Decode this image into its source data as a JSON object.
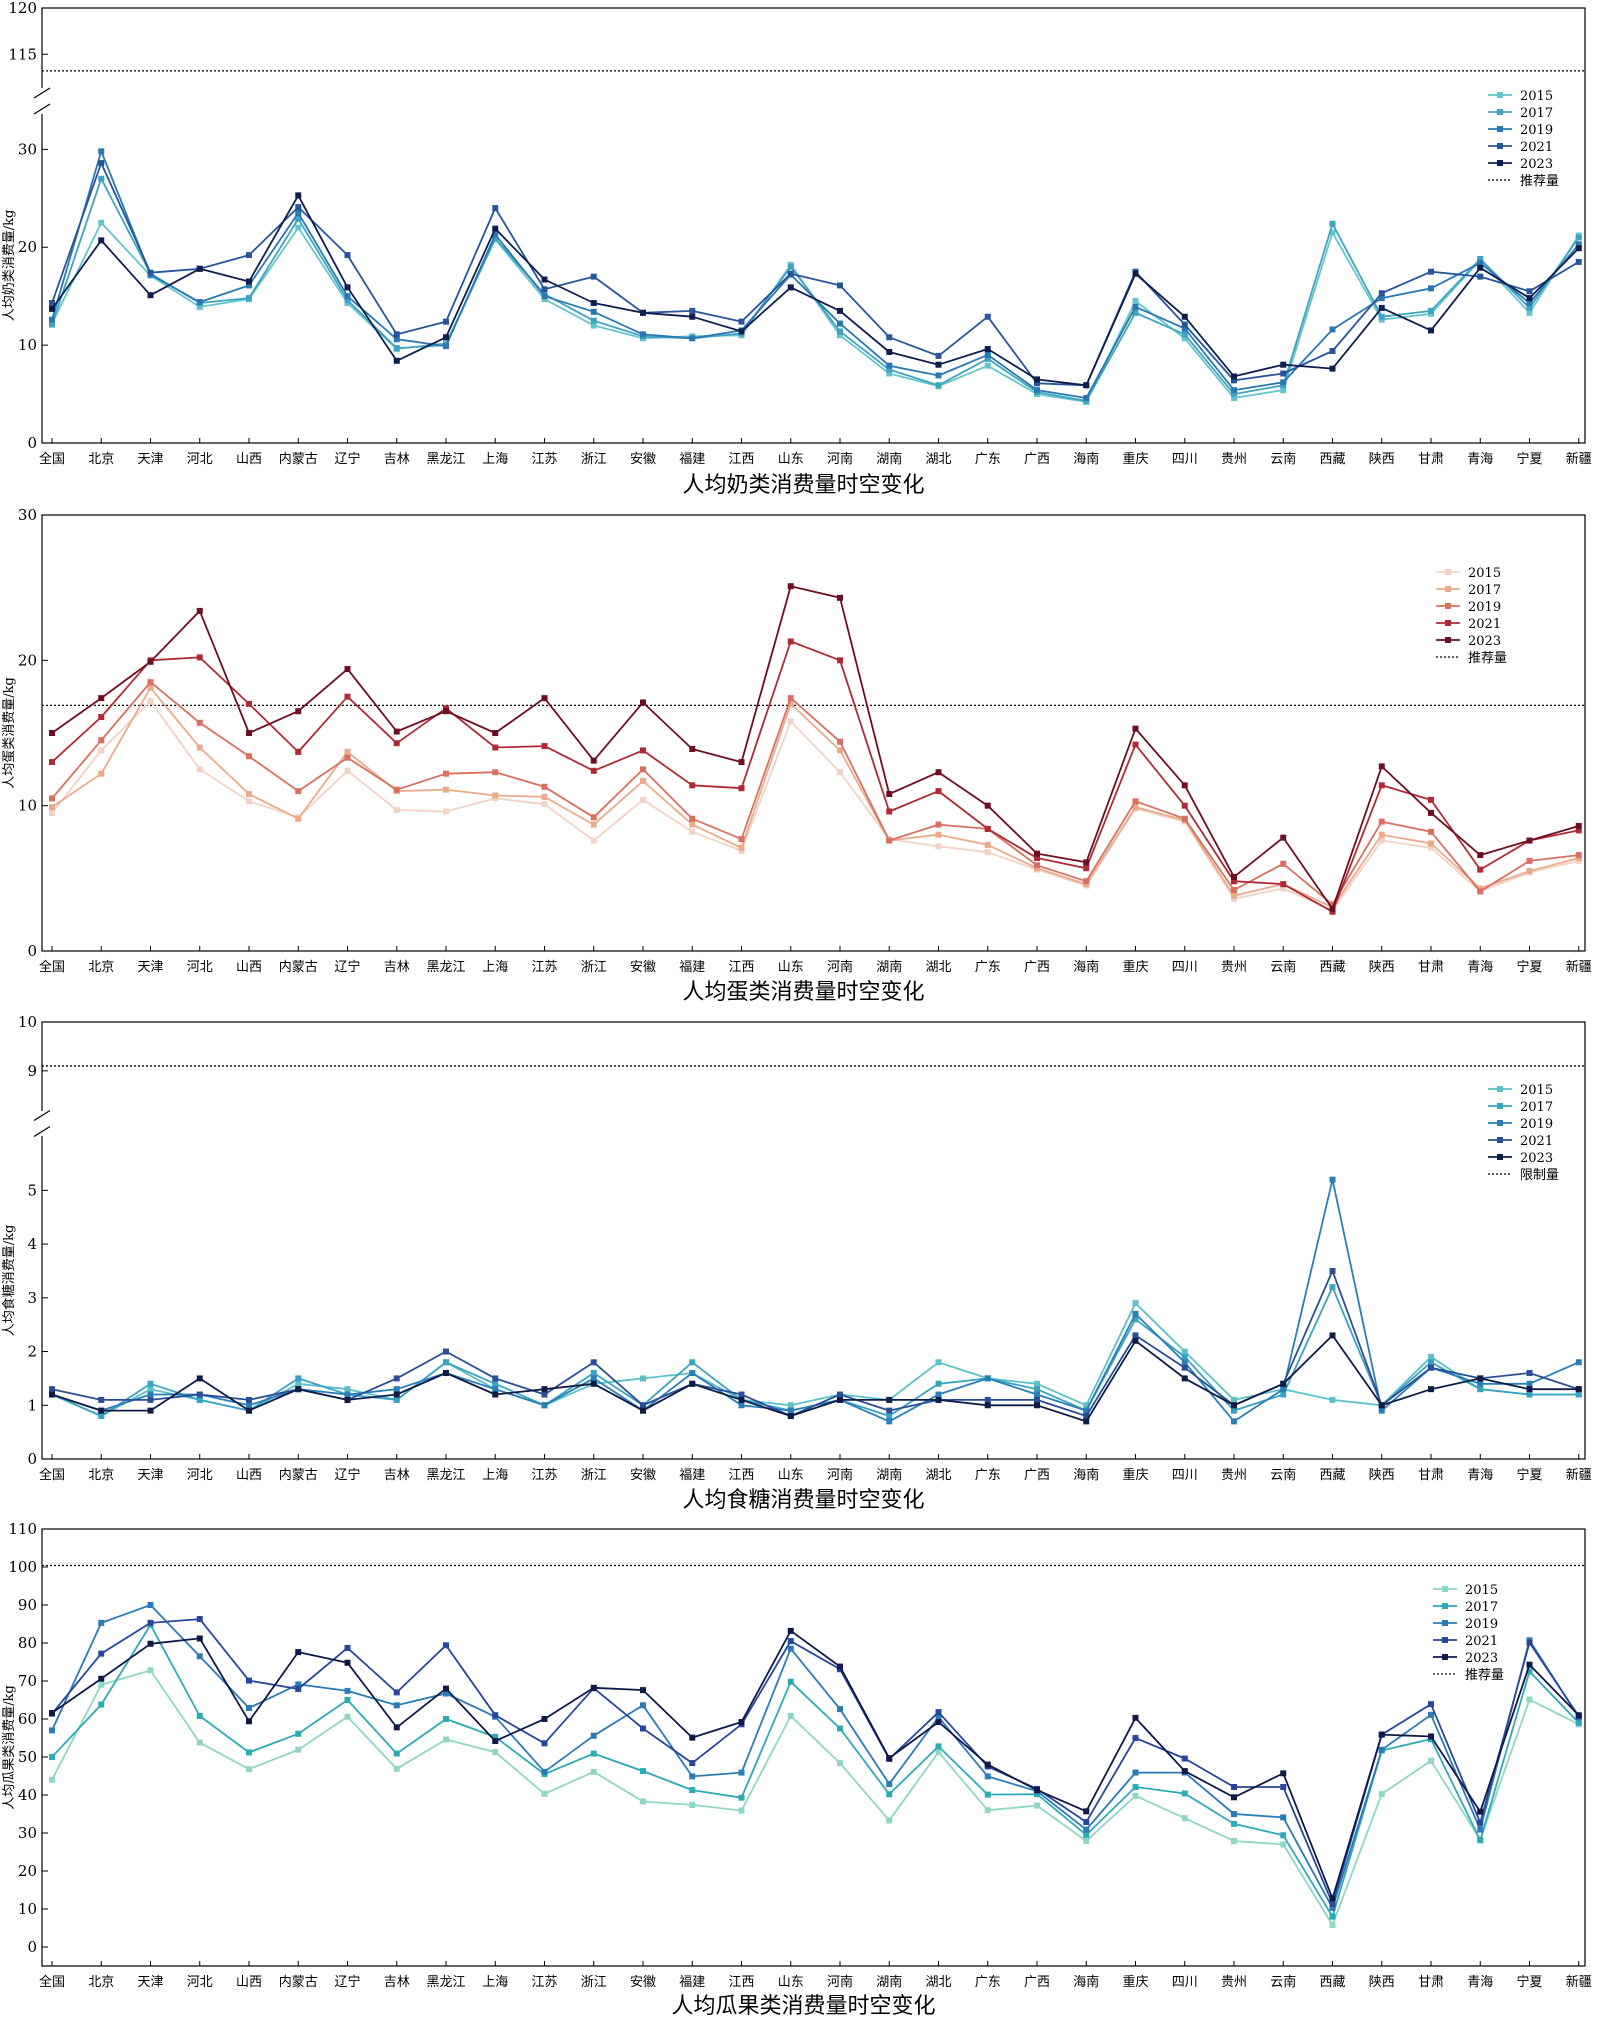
{
  "categories": [
    "全国",
    "北京",
    "天津",
    "河北",
    "山西",
    "内蒙古",
    "辽宁",
    "吉林",
    "黑龙江",
    "上海",
    "江苏",
    "浙江",
    "安徽",
    "福建",
    "江西",
    "山东",
    "河南",
    "湖南",
    "湖北",
    "广东",
    "广西",
    "海南",
    "重庆",
    "四川",
    "贵州",
    "云南",
    "西藏",
    "陕西",
    "甘肃",
    "青海",
    "宁夏",
    "新疆"
  ],
  "chart_data": [
    {
      "type": "line",
      "title": "人均奶类消费量时空变化",
      "ylabel": "人均奶类消费量/kg",
      "xlabel": "",
      "ylim": [
        0,
        120
      ],
      "axis_break": [
        33,
        112
      ],
      "yticks_lower": [
        0,
        10,
        20,
        30
      ],
      "yticks_upper": [
        115,
        120
      ],
      "reference": {
        "name": "推荐量",
        "value": 113.2
      },
      "colors": [
        "#66c5cc",
        "#3ea4c2",
        "#2a78b2",
        "#28569a",
        "#0f1e4e"
      ],
      "series": [
        {
          "name": "2015",
          "values": [
            12.2,
            22.5,
            17.1,
            13.9,
            14.7,
            22.0,
            14.3,
            9.6,
            10.2,
            20.8,
            14.7,
            12.0,
            10.7,
            10.9,
            11.0,
            18.2,
            11.0,
            7.1,
            5.8,
            7.9,
            5.0,
            4.2,
            14.5,
            10.7,
            4.6,
            5.4,
            21.5,
            12.6,
            13.2,
            18.7,
            13.3,
            21.2
          ]
        },
        {
          "name": "2017",
          "values": [
            12.1,
            27.0,
            17.3,
            14.3,
            14.8,
            22.9,
            14.6,
            9.7,
            10.0,
            20.9,
            15.2,
            12.5,
            10.9,
            10.7,
            11.2,
            18.0,
            11.4,
            7.5,
            5.9,
            8.6,
            5.2,
            4.3,
            13.3,
            11.1,
            5.0,
            5.9,
            22.4,
            12.9,
            13.5,
            18.8,
            13.8,
            21.0
          ]
        },
        {
          "name": "2019",
          "values": [
            12.6,
            29.8,
            17.2,
            14.4,
            16.1,
            23.5,
            15.0,
            10.6,
            9.9,
            21.3,
            15.0,
            13.4,
            11.1,
            10.7,
            11.5,
            17.2,
            12.2,
            7.9,
            6.9,
            9.0,
            5.4,
            4.6,
            13.9,
            11.7,
            5.4,
            6.2,
            11.6,
            14.8,
            15.8,
            18.4,
            14.3,
            20.3
          ]
        },
        {
          "name": "2021",
          "values": [
            14.3,
            28.6,
            17.4,
            17.8,
            19.2,
            24.1,
            19.2,
            11.1,
            12.4,
            24.0,
            15.7,
            17.0,
            13.3,
            13.5,
            12.4,
            17.3,
            16.1,
            10.8,
            8.9,
            12.9,
            6.1,
            5.9,
            17.5,
            12.1,
            6.4,
            7.1,
            9.4,
            15.3,
            17.5,
            17.0,
            15.5,
            18.5
          ]
        },
        {
          "name": "2023",
          "values": [
            13.7,
            20.7,
            15.1,
            17.8,
            16.5,
            25.3,
            15.9,
            8.4,
            10.8,
            21.9,
            16.7,
            14.3,
            13.3,
            12.9,
            11.4,
            15.9,
            13.5,
            9.3,
            8.0,
            9.6,
            6.5,
            5.9,
            17.3,
            12.9,
            6.8,
            8.0,
            7.6,
            13.8,
            11.5,
            17.9,
            14.8,
            19.9
          ]
        }
      ]
    },
    {
      "type": "line",
      "title": "人均蛋类消费量时空变化",
      "ylabel": "人均蛋类消费量/kg",
      "xlabel": "",
      "ylim": [
        0,
        30
      ],
      "yticks": [
        0,
        10,
        20,
        30
      ],
      "reference": {
        "name": "推荐量",
        "value": 16.9
      },
      "colors": [
        "#f2d2c4",
        "#ebab8a",
        "#d87060",
        "#b02a36",
        "#6e0e22"
      ],
      "series": [
        {
          "name": "2015",
          "values": [
            9.5,
            13.8,
            17.2,
            12.5,
            10.3,
            9.2,
            12.4,
            9.7,
            9.6,
            10.5,
            10.1,
            7.6,
            10.4,
            8.2,
            6.9,
            15.8,
            12.3,
            7.7,
            7.2,
            6.8,
            5.6,
            4.5,
            9.8,
            8.9,
            3.6,
            4.3,
            2.8,
            7.6,
            7.1,
            4.1,
            5.4,
            6.2
          ]
        },
        {
          "name": "2017",
          "values": [
            9.9,
            12.2,
            18.1,
            14.0,
            10.8,
            9.1,
            13.7,
            11.0,
            11.1,
            10.7,
            10.6,
            8.7,
            11.7,
            8.7,
            7.1,
            17.0,
            13.8,
            7.6,
            8.0,
            7.3,
            5.7,
            4.6,
            9.9,
            9.0,
            3.8,
            4.6,
            3.0,
            8.0,
            7.4,
            4.3,
            5.5,
            6.4
          ]
        },
        {
          "name": "2019",
          "values": [
            10.5,
            14.5,
            18.5,
            15.7,
            13.4,
            11.0,
            13.3,
            11.1,
            12.2,
            12.3,
            11.3,
            9.2,
            12.5,
            9.1,
            7.7,
            17.4,
            14.4,
            7.6,
            8.7,
            8.4,
            5.9,
            4.8,
            10.3,
            9.1,
            4.2,
            6.0,
            3.2,
            8.9,
            8.2,
            4.1,
            6.2,
            6.6
          ]
        },
        {
          "name": "2021",
          "values": [
            13.0,
            16.1,
            20.0,
            20.2,
            17.0,
            13.7,
            17.5,
            14.3,
            16.7,
            14.0,
            14.1,
            12.4,
            13.8,
            11.4,
            11.2,
            21.3,
            20.0,
            9.6,
            11.0,
            8.4,
            6.4,
            5.7,
            14.2,
            10.0,
            4.8,
            4.6,
            2.7,
            11.4,
            10.4,
            5.6,
            7.6,
            8.3
          ]
        },
        {
          "name": "2023",
          "values": [
            15.0,
            17.4,
            19.9,
            23.4,
            15.0,
            16.5,
            19.4,
            15.1,
            16.5,
            15.0,
            17.4,
            13.1,
            17.1,
            13.9,
            13.0,
            25.1,
            24.3,
            10.8,
            12.3,
            10.0,
            6.7,
            6.1,
            15.3,
            11.4,
            5.1,
            7.8,
            2.9,
            12.7,
            9.5,
            6.6,
            7.6,
            8.6
          ]
        }
      ]
    },
    {
      "type": "line",
      "title": "人均食糖消费量时空变化",
      "ylabel": "人均食糖消费量/kg",
      "xlabel": "",
      "ylim": [
        0,
        10
      ],
      "axis_break": [
        5.9,
        8.3
      ],
      "yticks_lower": [
        0,
        1,
        2,
        3,
        4,
        5
      ],
      "yticks_upper": [
        9,
        10
      ],
      "reference": {
        "name": "限制量",
        "value": 9.1
      },
      "colors": [
        "#5cc0c9",
        "#3aa3c2",
        "#2b7eb6",
        "#2a4f96",
        "#101c48"
      ],
      "series": [
        {
          "name": "2015",
          "values": [
            1.2,
            0.8,
            1.3,
            1.1,
            0.9,
            1.4,
            1.3,
            1.1,
            1.8,
            1.3,
            1.0,
            1.4,
            1.5,
            1.6,
            1.1,
            1.0,
            1.2,
            1.1,
            1.8,
            1.5,
            1.4,
            1.0,
            2.9,
            2.0,
            1.1,
            1.3,
            1.1,
            1.0,
            1.9,
            1.3,
            1.2,
            1.2
          ]
        },
        {
          "name": "2017",
          "values": [
            1.2,
            0.8,
            1.4,
            1.1,
            0.9,
            1.5,
            1.2,
            1.1,
            1.8,
            1.4,
            1.0,
            1.6,
            1.0,
            1.8,
            1.1,
            0.9,
            1.1,
            0.8,
            1.4,
            1.5,
            1.3,
            0.9,
            2.6,
            1.9,
            0.9,
            1.2,
            3.2,
            1.0,
            1.8,
            1.3,
            1.2,
            1.2
          ]
        },
        {
          "name": "2019",
          "values": [
            1.2,
            0.9,
            1.2,
            1.2,
            1.0,
            1.3,
            1.2,
            1.3,
            1.6,
            1.3,
            1.0,
            1.5,
            0.9,
            1.6,
            1.0,
            0.9,
            1.1,
            0.7,
            1.2,
            1.5,
            1.2,
            0.9,
            2.7,
            1.8,
            0.7,
            1.3,
            5.2,
            0.9,
            1.7,
            1.4,
            1.4,
            1.8
          ]
        },
        {
          "name": "2021",
          "values": [
            1.3,
            1.1,
            1.1,
            1.2,
            1.1,
            1.3,
            1.1,
            1.5,
            2.0,
            1.5,
            1.2,
            1.8,
            1.0,
            1.4,
            1.2,
            0.8,
            1.2,
            0.9,
            1.1,
            1.1,
            1.1,
            0.8,
            2.3,
            1.7,
            1.0,
            1.4,
            3.5,
            1.0,
            1.7,
            1.5,
            1.6,
            1.3
          ]
        },
        {
          "name": "2023",
          "values": [
            1.2,
            0.9,
            0.9,
            1.5,
            0.9,
            1.3,
            1.1,
            1.2,
            1.6,
            1.2,
            1.3,
            1.4,
            0.9,
            1.4,
            1.1,
            0.8,
            1.1,
            1.1,
            1.1,
            1.0,
            1.0,
            0.7,
            2.2,
            1.5,
            1.0,
            1.4,
            2.3,
            1.0,
            1.3,
            1.5,
            1.3,
            1.3
          ]
        }
      ]
    },
    {
      "type": "line",
      "title": "人均瓜果类消费量时空变化",
      "ylabel": "人均瓜果类消费量/kg",
      "xlabel": "",
      "ylim": [
        -5,
        110
      ],
      "yticks": [
        0,
        10,
        20,
        30,
        40,
        50,
        60,
        70,
        80,
        90,
        100,
        110
      ],
      "reference": {
        "name": "推荐量",
        "value": 100.4
      },
      "colors": [
        "#8fd6c4",
        "#2eaab6",
        "#2b7bb6",
        "#28469a",
        "#0f1a48"
      ],
      "series": [
        {
          "name": "2015",
          "values": [
            44.0,
            69.0,
            72.8,
            53.8,
            46.8,
            51.9,
            60.6,
            46.9,
            54.6,
            51.3,
            40.3,
            46.1,
            38.3,
            37.4,
            35.9,
            60.8,
            48.4,
            33.3,
            51.3,
            36.0,
            37.2,
            27.9,
            39.8,
            33.9,
            27.9,
            27.0,
            5.8,
            40.3,
            49.0,
            28.2,
            65.1,
            58.6
          ]
        },
        {
          "name": "2017",
          "values": [
            50.0,
            63.8,
            84.8,
            60.8,
            51.2,
            56.1,
            65.0,
            50.9,
            60.0,
            55.3,
            45.5,
            50.9,
            46.3,
            41.3,
            39.3,
            69.8,
            57.5,
            40.2,
            52.8,
            40.1,
            40.2,
            29.5,
            42.1,
            40.4,
            32.4,
            29.4,
            8.0,
            51.7,
            54.7,
            28.1,
            72.5,
            59.0
          ]
        },
        {
          "name": "2019",
          "values": [
            57.0,
            85.3,
            90.0,
            76.5,
            62.9,
            69.1,
            67.4,
            63.6,
            66.7,
            60.6,
            46.1,
            55.6,
            63.6,
            44.9,
            45.9,
            78.5,
            62.6,
            42.9,
            60.5,
            44.9,
            41.0,
            30.9,
            45.9,
            45.9,
            35.0,
            34.1,
            10.3,
            51.9,
            61.1,
            30.9,
            80.7,
            60.5
          ]
        },
        {
          "name": "2021",
          "values": [
            61.4,
            77.2,
            85.3,
            86.3,
            70.1,
            67.9,
            78.7,
            67.0,
            79.4,
            61.0,
            53.6,
            68.1,
            57.5,
            48.4,
            58.6,
            80.5,
            73.1,
            49.5,
            61.8,
            47.5,
            41.6,
            32.9,
            55.0,
            49.6,
            42.1,
            42.1,
            11.4,
            55.9,
            63.9,
            32.7,
            80.1,
            60.7
          ]
        },
        {
          "name": "2023",
          "values": [
            61.6,
            70.6,
            79.8,
            81.2,
            59.4,
            77.6,
            74.8,
            57.8,
            68.0,
            54.2,
            60.0,
            68.2,
            67.6,
            55.1,
            59.2,
            83.2,
            73.8,
            49.7,
            59.2,
            48.0,
            41.3,
            35.7,
            60.3,
            46.3,
            39.4,
            45.7,
            12.8,
            55.9,
            55.4,
            35.6,
            74.3,
            61.0
          ]
        }
      ]
    }
  ]
}
